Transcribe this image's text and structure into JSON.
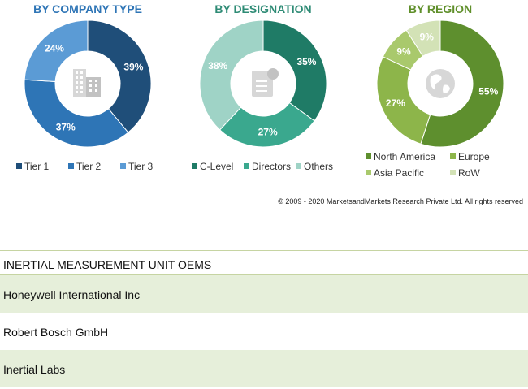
{
  "chart_data": [
    {
      "type": "pie",
      "title": "BY COMPANY TYPE",
      "title_color": "#2e75b6",
      "categories": [
        "Tier 1",
        "Tier 2",
        "Tier 3"
      ],
      "values": [
        39,
        37,
        24
      ],
      "value_labels": [
        "39%",
        "37%",
        "24%"
      ],
      "colors": [
        "#1f4e79",
        "#2e75b6",
        "#5b9bd5"
      ],
      "center_icon": "buildings-icon",
      "legend_position": "bottom"
    },
    {
      "type": "pie",
      "title": "BY DESIGNATION",
      "title_color": "#2e8b75",
      "categories": [
        "C-Level",
        "Directors",
        "Others"
      ],
      "values": [
        35,
        27,
        38
      ],
      "value_labels": [
        "35%",
        "27%",
        "38%"
      ],
      "colors": [
        "#1f7b66",
        "#3aa88e",
        "#9fd3c6"
      ],
      "center_icon": "id-card-icon",
      "legend_position": "bottom"
    },
    {
      "type": "pie",
      "title": "BY REGION",
      "title_color": "#5f8f2a",
      "categories": [
        "North America",
        "Europe",
        "Asia Pacific",
        "RoW"
      ],
      "values": [
        55,
        27,
        9,
        9
      ],
      "value_labels": [
        "55%",
        "27%",
        "9%",
        "9%"
      ],
      "colors": [
        "#5e8f2e",
        "#8db54a",
        "#a9c96c",
        "#d3e2b6"
      ],
      "center_icon": "globe-icon",
      "legend_position": "bottom"
    }
  ],
  "copyright": "© 2009 - 2020 MarketsandMarkets Research Private Ltd. All rights reserved",
  "oem_table": {
    "header": "INERTIAL MEASUREMENT UNIT OEMS",
    "rows": [
      "Honeywell International Inc",
      "Robert Bosch GmbH",
      "Inertial Labs"
    ]
  }
}
